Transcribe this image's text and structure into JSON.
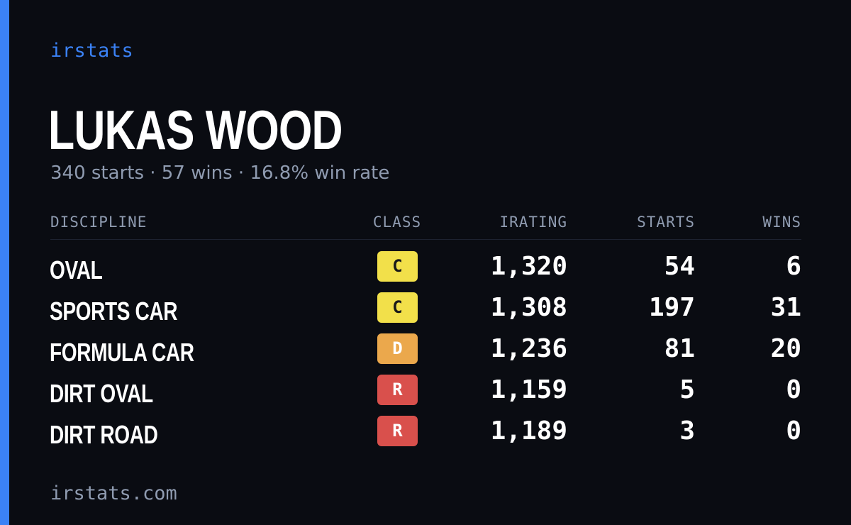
{
  "brand": "irstats",
  "driver": {
    "name": "LUKAS WOOD",
    "summary": "340 starts · 57 wins · 16.8% win rate"
  },
  "table": {
    "headers": {
      "discipline": "DISCIPLINE",
      "class": "CLASS",
      "irating": "IRATING",
      "starts": "STARTS",
      "wins": "WINS"
    },
    "rows": [
      {
        "discipline": "OVAL",
        "class": "C",
        "class_color": "#f2e04a",
        "class_text_color": "#1a1a1a",
        "irating": "1,320",
        "starts": "54",
        "wins": "6"
      },
      {
        "discipline": "SPORTS CAR",
        "class": "C",
        "class_color": "#f2e04a",
        "class_text_color": "#1a1a1a",
        "irating": "1,308",
        "starts": "197",
        "wins": "31"
      },
      {
        "discipline": "FORMULA CAR",
        "class": "D",
        "class_color": "#eba84c",
        "class_text_color": "#ffffff",
        "irating": "1,236",
        "starts": "81",
        "wins": "20"
      },
      {
        "discipline": "DIRT OVAL",
        "class": "R",
        "class_color": "#d9504c",
        "class_text_color": "#ffffff",
        "irating": "1,159",
        "starts": "5",
        "wins": "0"
      },
      {
        "discipline": "DIRT ROAD",
        "class": "R",
        "class_color": "#d9504c",
        "class_text_color": "#ffffff",
        "irating": "1,189",
        "starts": "3",
        "wins": "0"
      }
    ]
  },
  "footer": "irstats.com",
  "colors": {
    "accent": "#3b82f6",
    "background": "#0a0c12",
    "muted_text": "#8f9bb0"
  }
}
